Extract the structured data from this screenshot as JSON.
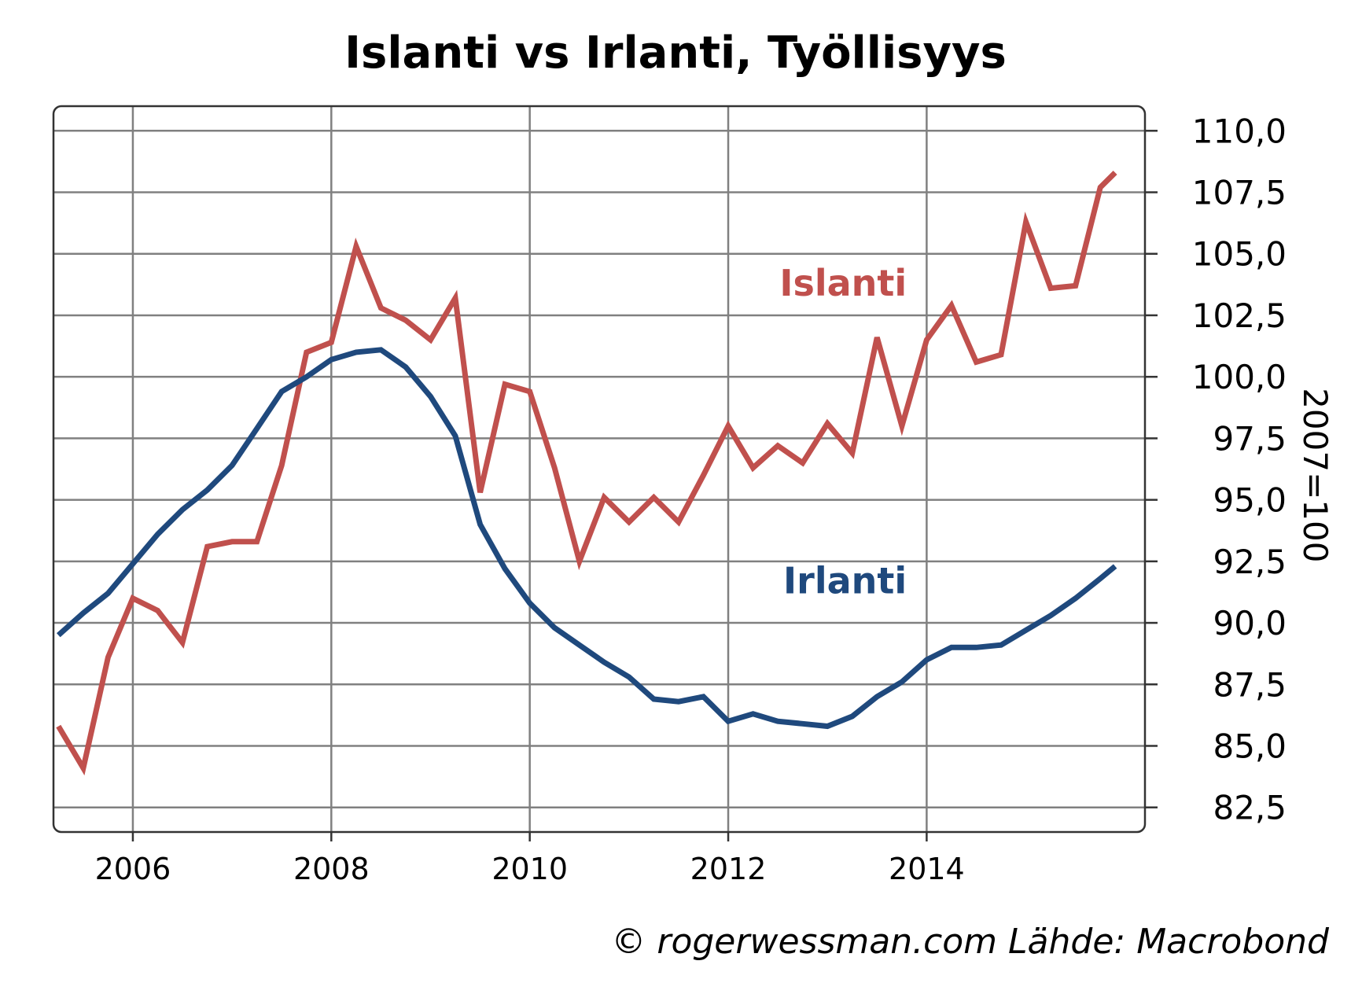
{
  "chart_data": {
    "type": "line",
    "title": "Islanti vs Irlanti, Työllisyys",
    "ylabel": "2007=100",
    "source": "© rogerwessman.com Lähde: Macrobond",
    "ylim": [
      81.5,
      111.0
    ],
    "xlim": [
      2005.2,
      2016.2
    ],
    "yticks": [
      82.5,
      85.0,
      87.5,
      90.0,
      92.5,
      95.0,
      97.5,
      100.0,
      102.5,
      105.0,
      107.5,
      110.0
    ],
    "ytick_labels": [
      "82,5",
      "85,0",
      "87,5",
      "90,0",
      "92,5",
      "95,0",
      "97,5",
      "100,0",
      "102,5",
      "105,0",
      "107,5",
      "110,0"
    ],
    "xticks": [
      2006,
      2008,
      2010,
      2012,
      2014
    ],
    "xtick_labels": [
      "2006",
      "2008",
      "2010",
      "2012",
      "2014"
    ],
    "grid": true,
    "series": [
      {
        "name": "Islanti",
        "color": "#c0504d",
        "label_at": [
          2013.8,
          103.3
        ],
        "x": [
          2005.25,
          2005.5,
          2005.75,
          2006.0,
          2006.25,
          2006.5,
          2006.75,
          2007.0,
          2007.25,
          2007.5,
          2007.75,
          2008.0,
          2008.25,
          2008.5,
          2008.75,
          2009.0,
          2009.25,
          2009.5,
          2009.75,
          2010.0,
          2010.25,
          2010.5,
          2010.75,
          2011.0,
          2011.25,
          2011.5,
          2011.75,
          2012.0,
          2012.25,
          2012.5,
          2012.75,
          2013.0,
          2013.25,
          2013.5,
          2013.75,
          2014.0,
          2014.25,
          2014.5,
          2014.75,
          2015.0,
          2015.25,
          2015.5,
          2015.75,
          2015.9
        ],
        "values": [
          85.8,
          84.1,
          88.6,
          91.0,
          90.5,
          89.2,
          93.1,
          93.3,
          93.3,
          96.4,
          101.0,
          101.4,
          105.3,
          102.8,
          102.3,
          101.5,
          103.2,
          95.3,
          99.7,
          99.4,
          96.3,
          92.5,
          95.1,
          94.1,
          95.1,
          94.1,
          96.0,
          98.0,
          96.3,
          97.2,
          96.5,
          98.1,
          96.9,
          101.6,
          98.0,
          101.5,
          102.9,
          100.6,
          100.9,
          106.3,
          103.6,
          103.7,
          107.7,
          108.3
        ]
      },
      {
        "name": "Irlanti",
        "color": "#1f497d",
        "label_at": [
          2013.8,
          91.2
        ],
        "x": [
          2005.25,
          2005.5,
          2005.75,
          2006.0,
          2006.25,
          2006.5,
          2006.75,
          2007.0,
          2007.25,
          2007.5,
          2007.75,
          2008.0,
          2008.25,
          2008.5,
          2008.75,
          2009.0,
          2009.25,
          2009.5,
          2009.75,
          2010.0,
          2010.25,
          2010.5,
          2010.75,
          2011.0,
          2011.25,
          2011.5,
          2011.75,
          2012.0,
          2012.25,
          2012.5,
          2012.75,
          2013.0,
          2013.25,
          2013.5,
          2013.75,
          2014.0,
          2014.25,
          2014.5,
          2014.75,
          2015.0,
          2015.25,
          2015.5,
          2015.75,
          2015.9
        ],
        "values": [
          89.5,
          90.4,
          91.2,
          92.4,
          93.6,
          94.6,
          95.4,
          96.4,
          97.9,
          99.4,
          100.0,
          100.7,
          101.0,
          101.1,
          100.4,
          99.2,
          97.6,
          94.0,
          92.2,
          90.8,
          89.8,
          89.1,
          88.4,
          87.8,
          86.9,
          86.8,
          87.0,
          86.0,
          86.3,
          86.0,
          85.9,
          85.8,
          86.2,
          87.0,
          87.6,
          88.5,
          89.0,
          89.0,
          89.1,
          89.7,
          90.3,
          91.0,
          91.8,
          92.3
        ]
      }
    ]
  }
}
